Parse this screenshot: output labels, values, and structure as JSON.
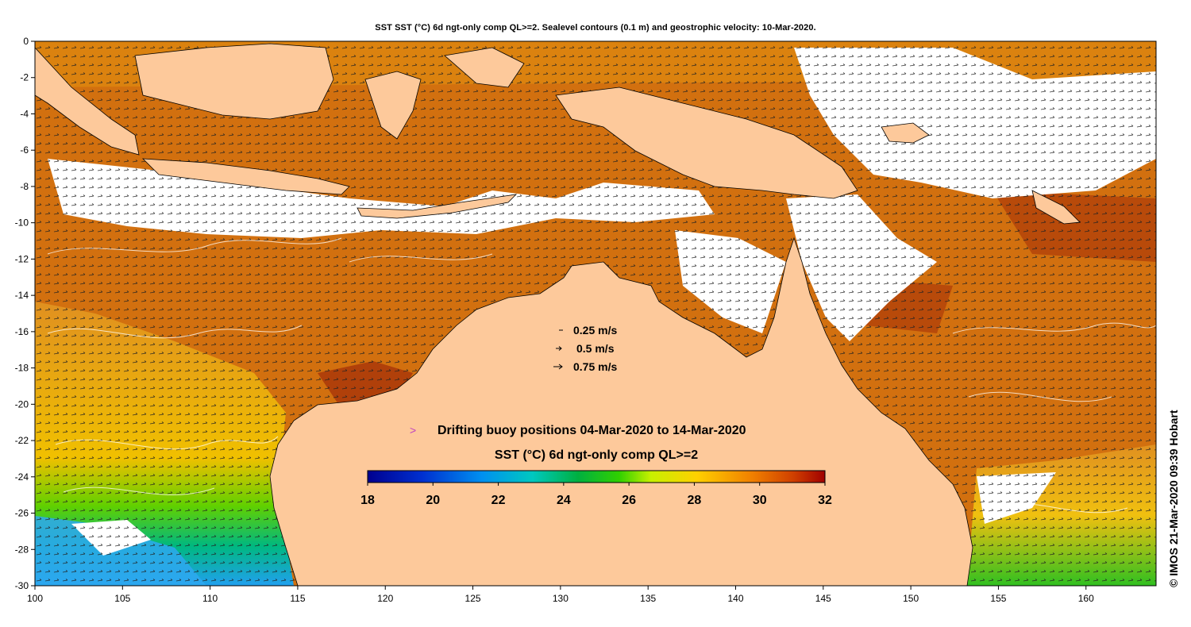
{
  "title": "SST SST (°C) 6d ngt-only comp QL>=2. Sealevel contours (0.1 m) and geostrophic velocity: 10-Mar-2020.",
  "credit": "© IMOS 21-Mar-2020 09:39 Hobart",
  "x_axis": {
    "ticks": [
      "100",
      "105",
      "110",
      "115",
      "120",
      "125",
      "130",
      "135",
      "140",
      "145",
      "150",
      "155",
      "160"
    ],
    "tick_values": [
      100,
      105,
      110,
      115,
      120,
      125,
      130,
      135,
      140,
      145,
      150,
      155,
      160
    ],
    "range": [
      100,
      164
    ]
  },
  "y_axis": {
    "ticks": [
      "0",
      "-2",
      "-4",
      "-6",
      "-8",
      "-10",
      "-12",
      "-14",
      "-16",
      "-18",
      "-20",
      "-22",
      "-24",
      "-26",
      "-28",
      "-30"
    ],
    "tick_values": [
      0,
      -2,
      -4,
      -6,
      -8,
      -10,
      -12,
      -14,
      -16,
      -18,
      -20,
      -22,
      -24,
      -26,
      -28,
      -30
    ],
    "range": [
      -30,
      0
    ]
  },
  "velocity_legend": {
    "items": [
      {
        "label": "0.25 m/s"
      },
      {
        "label": "0.5 m/s"
      },
      {
        "label": "0.75 m/s"
      }
    ]
  },
  "buoy_legend": {
    "marker": ">",
    "label": "Drifting buoy positions 04-Mar-2020 to 14-Mar-2020",
    "marker_color": "#c040c0"
  },
  "colorbar": {
    "title": "SST (°C) 6d ngt-only comp QL>=2",
    "ticks": [
      "18",
      "20",
      "22",
      "24",
      "26",
      "28",
      "30",
      "32"
    ],
    "tick_values": [
      18,
      20,
      22,
      24,
      26,
      28,
      30,
      32
    ],
    "range": [
      18,
      32
    ]
  },
  "colors": {
    "land": "#fdc99b",
    "warm_sst": "#d2700f",
    "hot_sst": "#b0400a",
    "cloud": "#ffffff"
  }
}
